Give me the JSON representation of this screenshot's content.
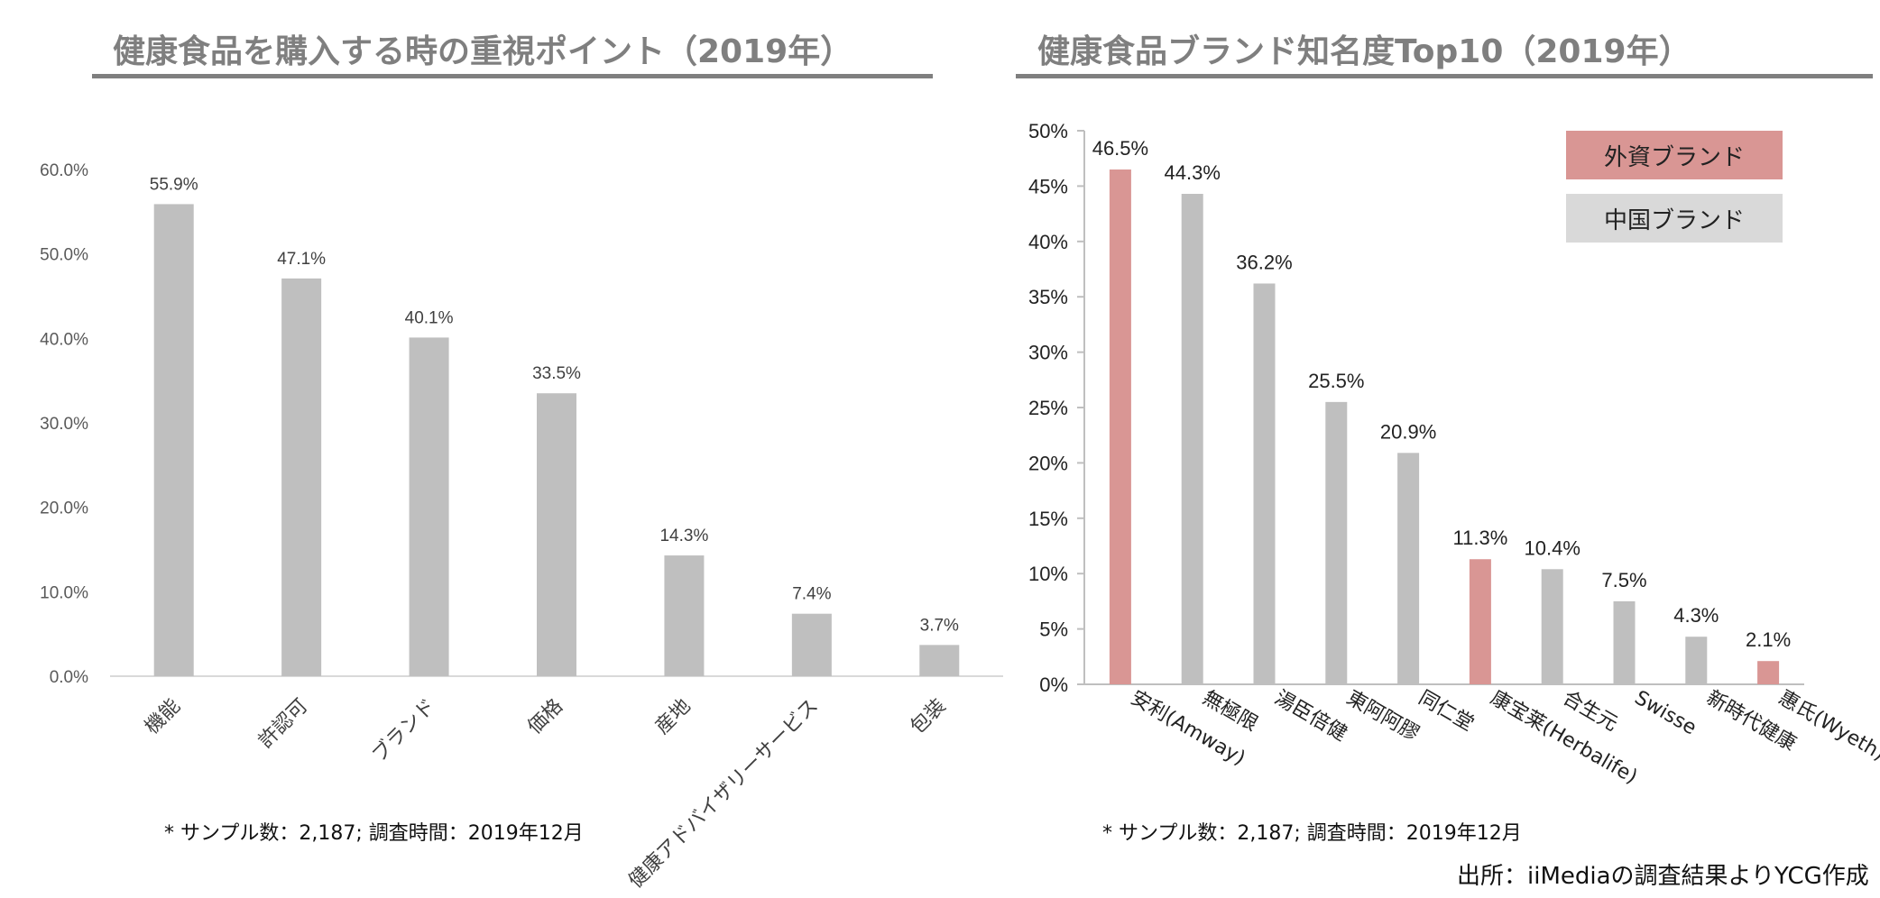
{
  "left": {
    "title": "健康食品を購入する時の重視ポイント（2019年）",
    "note": "* サンプル数：2,187; 調査時間：2019年12月"
  },
  "right": {
    "title": "健康食品ブランド知名度Top10（2019年）",
    "note": "* サンプル数：2,187; 調査時間：2019年12月",
    "source": "出所：iiMediaの調査結果よりYCG作成",
    "legend": [
      {
        "label": "外資ブランド",
        "color": "#d99694"
      },
      {
        "label": "中国ブランド",
        "color": "#d9d9d9"
      }
    ]
  },
  "chart_data": [
    {
      "type": "bar",
      "title": "健康食品を購入する時の重視ポイント（2019年）",
      "categories": [
        "機能",
        "許認可",
        "ブランド",
        "価格",
        "産地",
        "健康アドバイザリーサービス",
        "包装"
      ],
      "values": [
        55.9,
        47.1,
        40.1,
        33.5,
        14.3,
        7.4,
        3.7
      ],
      "data_labels": [
        "55.9%",
        "47.1%",
        "40.1%",
        "33.5%",
        "14.3%",
        "7.4%",
        "3.7%"
      ],
      "ylim": [
        0,
        60
      ],
      "yticks": [
        "0.0%",
        "10.0%",
        "20.0%",
        "30.0%",
        "40.0%",
        "50.0%",
        "60.0%"
      ],
      "bar_color": "#bfbfbf",
      "grid": false
    },
    {
      "type": "bar",
      "title": "健康食品ブランド知名度Top10（2019年）",
      "categories": [
        "安利(Amway)",
        "無極限",
        "湯臣倍健",
        "東阿阿膠",
        "同仁堂",
        "康宝莱(Herbalife)",
        "合生元",
        "Swisse",
        "新時代健康",
        "惠氏(Wyeth)"
      ],
      "values": [
        46.5,
        44.3,
        36.2,
        25.5,
        20.9,
        11.3,
        10.4,
        7.5,
        4.3,
        2.1
      ],
      "data_labels": [
        "46.5%",
        "44.3%",
        "36.2%",
        "25.5%",
        "20.9%",
        "11.3%",
        "10.4%",
        "7.5%",
        "4.3%",
        "2.1%"
      ],
      "group": [
        "外資ブランド",
        "中国ブランド",
        "中国ブランド",
        "中国ブランド",
        "中国ブランド",
        "外資ブランド",
        "中国ブランド",
        "中国ブランド",
        "中国ブランド",
        "外資ブランド"
      ],
      "colors": {
        "外資ブランド": "#d99694",
        "中国ブランド": "#bfbfbf"
      },
      "ylim": [
        0,
        50
      ],
      "yticks": [
        "0%",
        "5%",
        "10%",
        "15%",
        "20%",
        "25%",
        "30%",
        "35%",
        "40%",
        "45%",
        "50%"
      ],
      "legend_position": "top-right",
      "grid": false
    }
  ]
}
